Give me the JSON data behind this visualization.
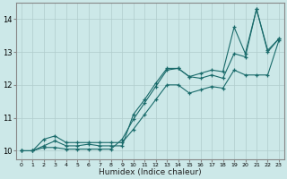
{
  "title": "",
  "xlabel": "Humidex (Indice chaleur)",
  "ylabel": "",
  "bg_color": "#cce8e8",
  "grid_color": "#b0cccc",
  "line_color": "#1a6b6b",
  "xlim": [
    -0.5,
    23.5
  ],
  "ylim": [
    9.75,
    14.5
  ],
  "xticks": [
    0,
    1,
    2,
    3,
    4,
    5,
    6,
    7,
    8,
    9,
    10,
    11,
    12,
    13,
    14,
    15,
    16,
    17,
    18,
    19,
    20,
    21,
    22,
    23
  ],
  "yticks": [
    10,
    11,
    12,
    13,
    14
  ],
  "series": [
    {
      "x": [
        0,
        1,
        2,
        3,
        4,
        5,
        6,
        7,
        8,
        9,
        10,
        11,
        12,
        13,
        14,
        15,
        16,
        17,
        18,
        19,
        20,
        21,
        22,
        23
      ],
      "y": [
        10.0,
        10.0,
        10.15,
        10.3,
        10.15,
        10.15,
        10.2,
        10.15,
        10.15,
        10.15,
        11.1,
        11.55,
        12.05,
        12.5,
        12.5,
        12.25,
        12.35,
        12.45,
        12.4,
        13.75,
        12.95,
        14.3,
        13.0,
        13.4
      ]
    },
    {
      "x": [
        0,
        1,
        2,
        3,
        4,
        5,
        6,
        7,
        8,
        9,
        10,
        11,
        12,
        13,
        14,
        15,
        16,
        17,
        18,
        19,
        20,
        21,
        22,
        23
      ],
      "y": [
        10.0,
        10.0,
        10.1,
        10.1,
        10.05,
        10.05,
        10.05,
        10.05,
        10.05,
        10.35,
        10.95,
        11.45,
        11.95,
        12.45,
        12.5,
        12.25,
        12.2,
        12.3,
        12.2,
        12.95,
        12.85,
        14.3,
        13.05,
        13.4
      ]
    },
    {
      "x": [
        0,
        1,
        2,
        3,
        4,
        5,
        6,
        7,
        8,
        9,
        10,
        11,
        12,
        13,
        14,
        15,
        16,
        17,
        18,
        19,
        20,
        21,
        22,
        23
      ],
      "y": [
        10.0,
        10.0,
        10.35,
        10.45,
        10.25,
        10.25,
        10.25,
        10.25,
        10.25,
        10.25,
        10.65,
        11.1,
        11.55,
        12.0,
        12.0,
        11.75,
        11.85,
        11.95,
        11.9,
        12.45,
        12.3,
        12.3,
        12.3,
        13.35
      ]
    }
  ]
}
